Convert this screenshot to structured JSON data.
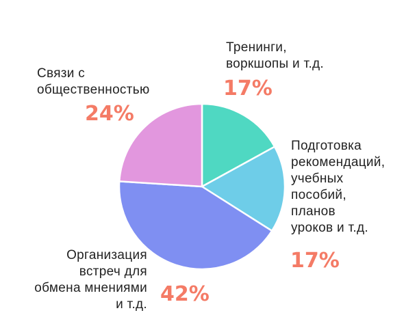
{
  "chart_data": {
    "type": "pie",
    "title": "",
    "start_angle_deg": 0,
    "direction": "clockwise",
    "slices": [
      {
        "label_lines": [
          "Тренинги,",
          "воркшопы и т.д."
        ],
        "value": 17,
        "value_label": "17%",
        "color": "#4fd8c2"
      },
      {
        "label_lines": [
          "Подготовка",
          "рекомендаций,",
          "учебных",
          "пособий,",
          "планов",
          "уроков и т.д."
        ],
        "value": 17,
        "value_label": "17%",
        "color": "#6ecde8"
      },
      {
        "label_lines": [
          "Организация",
          "встреч для",
          "обмена мнениями",
          "и т.д."
        ],
        "value": 42,
        "value_label": "42%",
        "color": "#7f8ff2"
      },
      {
        "label_lines": [
          "Связи с",
          "общественностью"
        ],
        "value": 24,
        "value_label": "24%",
        "color": "#e297de"
      }
    ]
  }
}
